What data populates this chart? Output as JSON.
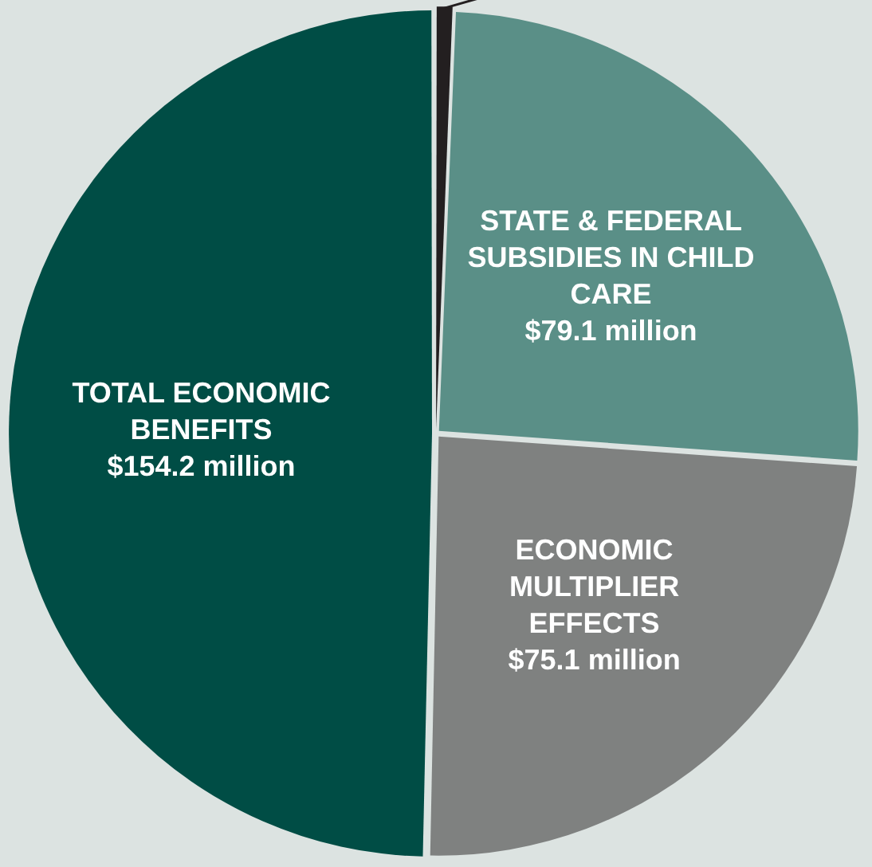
{
  "chart_data": {
    "type": "pie",
    "categories": [
      null,
      "STATE & FEDERAL SUBSIDIES IN CHILD CARE",
      "ECONOMIC MULTIPLIER EFFECTS",
      "TOTAL ECONOMIC BENEFITS"
    ],
    "values": [
      2,
      79.1,
      75.1,
      154.2
    ],
    "value_labels": [
      null,
      "$79.1 million",
      "$75.1 million",
      "$154.2 million"
    ],
    "colors": [
      "#231f20",
      "#5a8f87",
      "#7f8180",
      "#004d45"
    ],
    "legend": false
  }
}
